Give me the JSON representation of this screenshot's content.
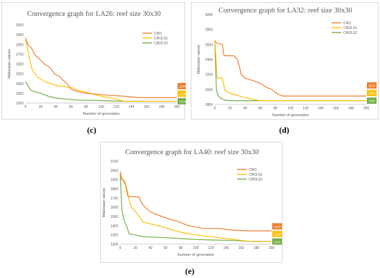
{
  "captions": {
    "c": "(c)",
    "d": "(d)",
    "e": "(e)"
  },
  "chart_data": [
    {
      "type": "line",
      "title": "Convergence graph for LA26: reef size 30x30",
      "xlabel": "Number of generation",
      "ylabel": "Makespan values",
      "xlim": [
        0,
        200
      ],
      "ylim": [
        1200,
        2000
      ],
      "xticks": [
        0,
        20,
        40,
        60,
        80,
        100,
        120,
        140,
        160,
        180,
        200
      ],
      "yticks": [
        1200,
        1300,
        1400,
        1500,
        1600,
        1700,
        1800,
        1900,
        2000
      ],
      "grid": false,
      "legend": "top-right",
      "series": [
        {
          "name": "CRO",
          "color": "#ed7d31",
          "end_label": "1256",
          "points": [
            [
              0,
              1870
            ],
            [
              3,
              1800
            ],
            [
              8,
              1760
            ],
            [
              12,
              1700
            ],
            [
              17,
              1660
            ],
            [
              25,
              1600
            ],
            [
              33,
              1560
            ],
            [
              38,
              1500
            ],
            [
              45,
              1470
            ],
            [
              50,
              1430
            ],
            [
              55,
              1400
            ],
            [
              60,
              1340
            ],
            [
              68,
              1320
            ],
            [
              80,
              1300
            ],
            [
              95,
              1290
            ],
            [
              110,
              1280
            ],
            [
              130,
              1270
            ],
            [
              150,
              1256
            ],
            [
              200,
              1256
            ]
          ]
        },
        {
          "name": "CROLS1",
          "color": "#ffc000",
          "end_label": "1218",
          "points": [
            [
              0,
              1850
            ],
            [
              4,
              1700
            ],
            [
              8,
              1560
            ],
            [
              12,
              1500
            ],
            [
              17,
              1460
            ],
            [
              25,
              1420
            ],
            [
              33,
              1400
            ],
            [
              40,
              1380
            ],
            [
              50,
              1370
            ],
            [
              60,
              1360
            ],
            [
              70,
              1330
            ],
            [
              85,
              1300
            ],
            [
              100,
              1270
            ],
            [
              120,
              1240
            ],
            [
              130,
              1218
            ],
            [
              200,
              1218
            ]
          ]
        },
        {
          "name": "CROLS2",
          "color": "#70ad47",
          "end_label": "1218",
          "points": [
            [
              0,
              1420
            ],
            [
              3,
              1380
            ],
            [
              6,
              1340
            ],
            [
              10,
              1320
            ],
            [
              20,
              1300
            ],
            [
              30,
              1270
            ],
            [
              40,
              1250
            ],
            [
              55,
              1240
            ],
            [
              70,
              1230
            ],
            [
              100,
              1225
            ],
            [
              130,
              1218
            ],
            [
              200,
              1218
            ]
          ]
        }
      ]
    },
    {
      "type": "line",
      "title": "Convergence graph for LA32: reef size 30x30",
      "xlabel": "Number of generation",
      "ylabel": "Makespan values",
      "xlim": [
        0,
        200
      ],
      "ylim": [
        1800,
        3000
      ],
      "xticks": [
        0,
        20,
        40,
        60,
        80,
        100,
        120,
        140,
        160,
        180,
        200
      ],
      "yticks": [
        1800,
        2000,
        2200,
        2400,
        2600,
        2800,
        3000
      ],
      "grid": false,
      "legend": "top-right",
      "series": [
        {
          "name": "CRO",
          "color": "#ed7d31",
          "end_label": "1912",
          "points": [
            [
              0,
              2650
            ],
            [
              2,
              2620
            ],
            [
              10,
              2600
            ],
            [
              12,
              2450
            ],
            [
              25,
              2450
            ],
            [
              30,
              2400
            ],
            [
              35,
              2200
            ],
            [
              40,
              2150
            ],
            [
              50,
              2120
            ],
            [
              60,
              2080
            ],
            [
              70,
              2020
            ],
            [
              75,
              2000
            ],
            [
              80,
              1960
            ],
            [
              85,
              1930
            ],
            [
              90,
              1912
            ],
            [
              200,
              1912
            ]
          ]
        },
        {
          "name": "CROLS1",
          "color": "#ffc000",
          "end_label": "1850",
          "points": [
            [
              0,
              2660
            ],
            [
              3,
              2150
            ],
            [
              10,
              2150
            ],
            [
              13,
              1990
            ],
            [
              20,
              1950
            ],
            [
              30,
              1920
            ],
            [
              40,
              1890
            ],
            [
              50,
              1870
            ],
            [
              60,
              1850
            ],
            [
              200,
              1850
            ]
          ]
        },
        {
          "name": "CROLS2",
          "color": "#70ad47",
          "end_label": "1850",
          "points": [
            [
              0,
              2600
            ],
            [
              2,
              2000
            ],
            [
              4,
              1920
            ],
            [
              8,
              1880
            ],
            [
              12,
              1860
            ],
            [
              20,
              1850
            ],
            [
              200,
              1850
            ]
          ]
        }
      ]
    },
    {
      "type": "line",
      "title": "Convergence graph for LA40: reef size 30x30",
      "xlabel": "Number of generation",
      "ylabel": "Makespan values",
      "xlim": [
        0,
        200
      ],
      "ylim": [
        1200,
        2100
      ],
      "xticks": [
        0,
        20,
        40,
        60,
        80,
        100,
        120,
        140,
        160,
        180,
        200
      ],
      "yticks": [
        1200,
        1300,
        1400,
        1500,
        1600,
        1700,
        1800,
        1900,
        2000,
        2100
      ],
      "grid": false,
      "legend": "top-right",
      "series": [
        {
          "name": "CRO",
          "color": "#ed7d31",
          "end_label": "1343",
          "points": [
            [
              0,
              1990
            ],
            [
              2,
              1900
            ],
            [
              6,
              1880
            ],
            [
              10,
              1720
            ],
            [
              25,
              1710
            ],
            [
              28,
              1650
            ],
            [
              33,
              1600
            ],
            [
              38,
              1560
            ],
            [
              45,
              1530
            ],
            [
              55,
              1500
            ],
            [
              65,
              1470
            ],
            [
              75,
              1450
            ],
            [
              90,
              1400
            ],
            [
              110,
              1370
            ],
            [
              130,
              1370
            ],
            [
              150,
              1350
            ],
            [
              170,
              1343
            ],
            [
              200,
              1343
            ]
          ]
        },
        {
          "name": "CROLS1",
          "color": "#ffc000",
          "end_label": "1228",
          "points": [
            [
              0,
              1960
            ],
            [
              4,
              1890
            ],
            [
              8,
              1820
            ],
            [
              14,
              1610
            ],
            [
              20,
              1550
            ],
            [
              25,
              1500
            ],
            [
              30,
              1440
            ],
            [
              40,
              1420
            ],
            [
              55,
              1390
            ],
            [
              70,
              1350
            ],
            [
              85,
              1320
            ],
            [
              100,
              1300
            ],
            [
              120,
              1280
            ],
            [
              140,
              1260
            ],
            [
              160,
              1240
            ],
            [
              175,
              1228
            ],
            [
              200,
              1228
            ]
          ]
        },
        {
          "name": "CROLS2",
          "color": "#70ad47",
          "end_label": "1228",
          "points": [
            [
              0,
              1960
            ],
            [
              2,
              1580
            ],
            [
              5,
              1460
            ],
            [
              8,
              1400
            ],
            [
              12,
              1310
            ],
            [
              20,
              1300
            ],
            [
              30,
              1280
            ],
            [
              60,
              1270
            ],
            [
              80,
              1260
            ],
            [
              100,
              1250
            ],
            [
              120,
              1245
            ],
            [
              150,
              1240
            ],
            [
              170,
              1230
            ],
            [
              200,
              1228
            ]
          ]
        }
      ]
    }
  ]
}
